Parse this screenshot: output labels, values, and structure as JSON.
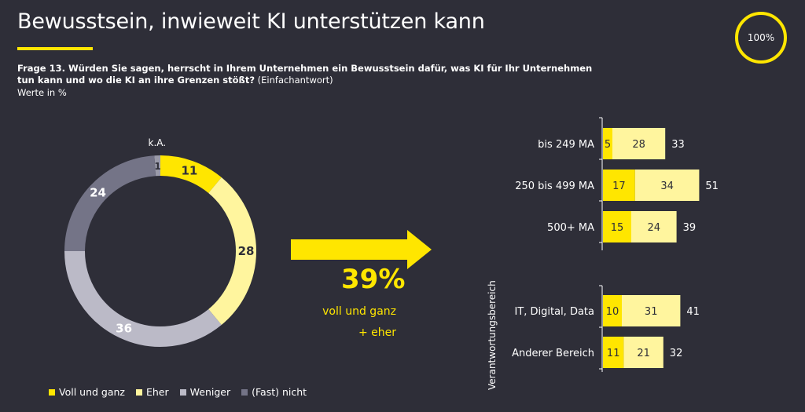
{
  "title": "Bewusstsein, inwieweit KI unterstützen kann",
  "badge": "100%",
  "question_bold": "Frage 13. Würden Sie sagen, herrscht in Ihrem Unternehmen ein Bewusstsein dafür, was KI für Ihr Unternehmen tun kann und wo die KI an ihre Grenzen stößt?",
  "question_note": "(Einfachantwort)",
  "unit_note": "Werte in %",
  "highlight": {
    "value": "39%",
    "line1": "voll und ganz",
    "line2": "+ eher"
  },
  "colors": {
    "voll": "#ffe600",
    "eher": "#fff59e",
    "weniger": "#bbbac7",
    "nicht": "#747487",
    "ka": "#9a9aa8",
    "background": "#2e2e38"
  },
  "legend": [
    {
      "label": "Voll und ganz",
      "color": "#ffe600"
    },
    {
      "label": "Eher",
      "color": "#fff59e"
    },
    {
      "label": "Weniger",
      "color": "#bbbac7"
    },
    {
      "label": "(Fast) nicht",
      "color": "#747487"
    }
  ],
  "chart_data": [
    {
      "type": "pie",
      "variant": "donut",
      "title": "Bewusstsein, inwieweit KI unterstützen kann",
      "unit": "%",
      "slices": [
        {
          "label": "k.A.",
          "value": 1,
          "color": "#9a9aa8"
        },
        {
          "label": "Voll und ganz",
          "value": 11,
          "color": "#ffe600"
        },
        {
          "label": "Eher",
          "value": 28,
          "color": "#fff59e"
        },
        {
          "label": "Weniger",
          "value": 36,
          "color": "#bbbac7"
        },
        {
          "label": "(Fast) nicht",
          "value": 24,
          "color": "#747487"
        }
      ]
    },
    {
      "type": "bar",
      "orientation": "horizontal",
      "stacked": true,
      "unit": "%",
      "axis_label": "Verantwortungsbereich",
      "categories": [
        "bis 249 MA",
        "250 bis 499 MA",
        "500+ MA",
        "IT, Digital, Data",
        "Anderer Bereich"
      ],
      "series": [
        {
          "name": "Voll und ganz",
          "values": [
            5,
            17,
            15,
            10,
            11
          ],
          "color": "#ffe600"
        },
        {
          "name": "Eher",
          "values": [
            28,
            34,
            24,
            31,
            21
          ],
          "color": "#fff59e"
        }
      ],
      "totals": [
        33,
        51,
        39,
        41,
        32
      ]
    }
  ]
}
